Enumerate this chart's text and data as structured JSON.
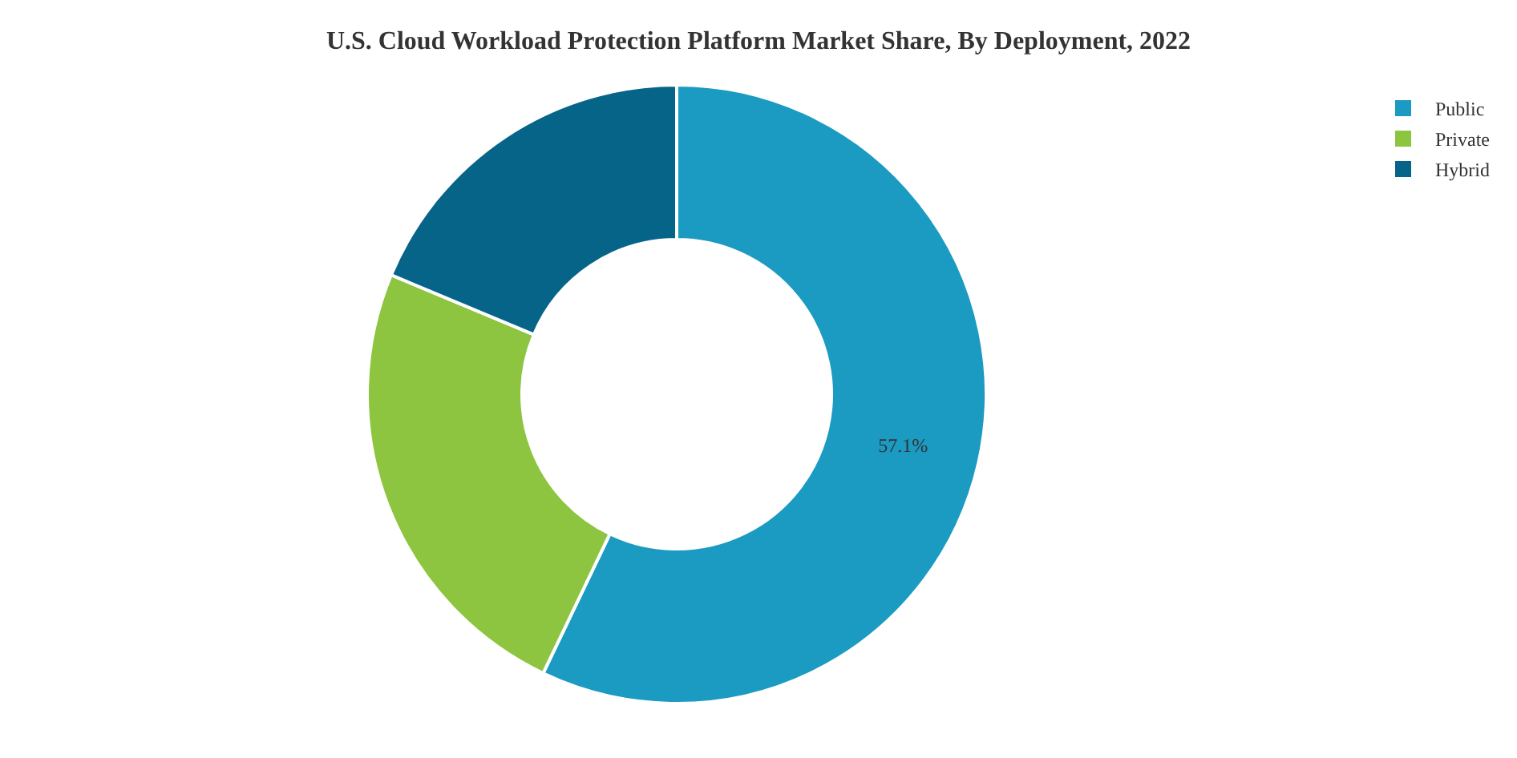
{
  "chart_data": {
    "type": "donut",
    "title": "U.S. Cloud Workload Protection Platform Market Share, By Deployment, 2022",
    "categories": [
      "Public",
      "Private",
      "Hybrid"
    ],
    "values": [
      57.1,
      24.2,
      18.7
    ],
    "colors": [
      "#1b9ac2",
      "#8dc540",
      "#066489"
    ],
    "value_labels": [
      "57.1%",
      null,
      null
    ],
    "legend": "top right"
  }
}
